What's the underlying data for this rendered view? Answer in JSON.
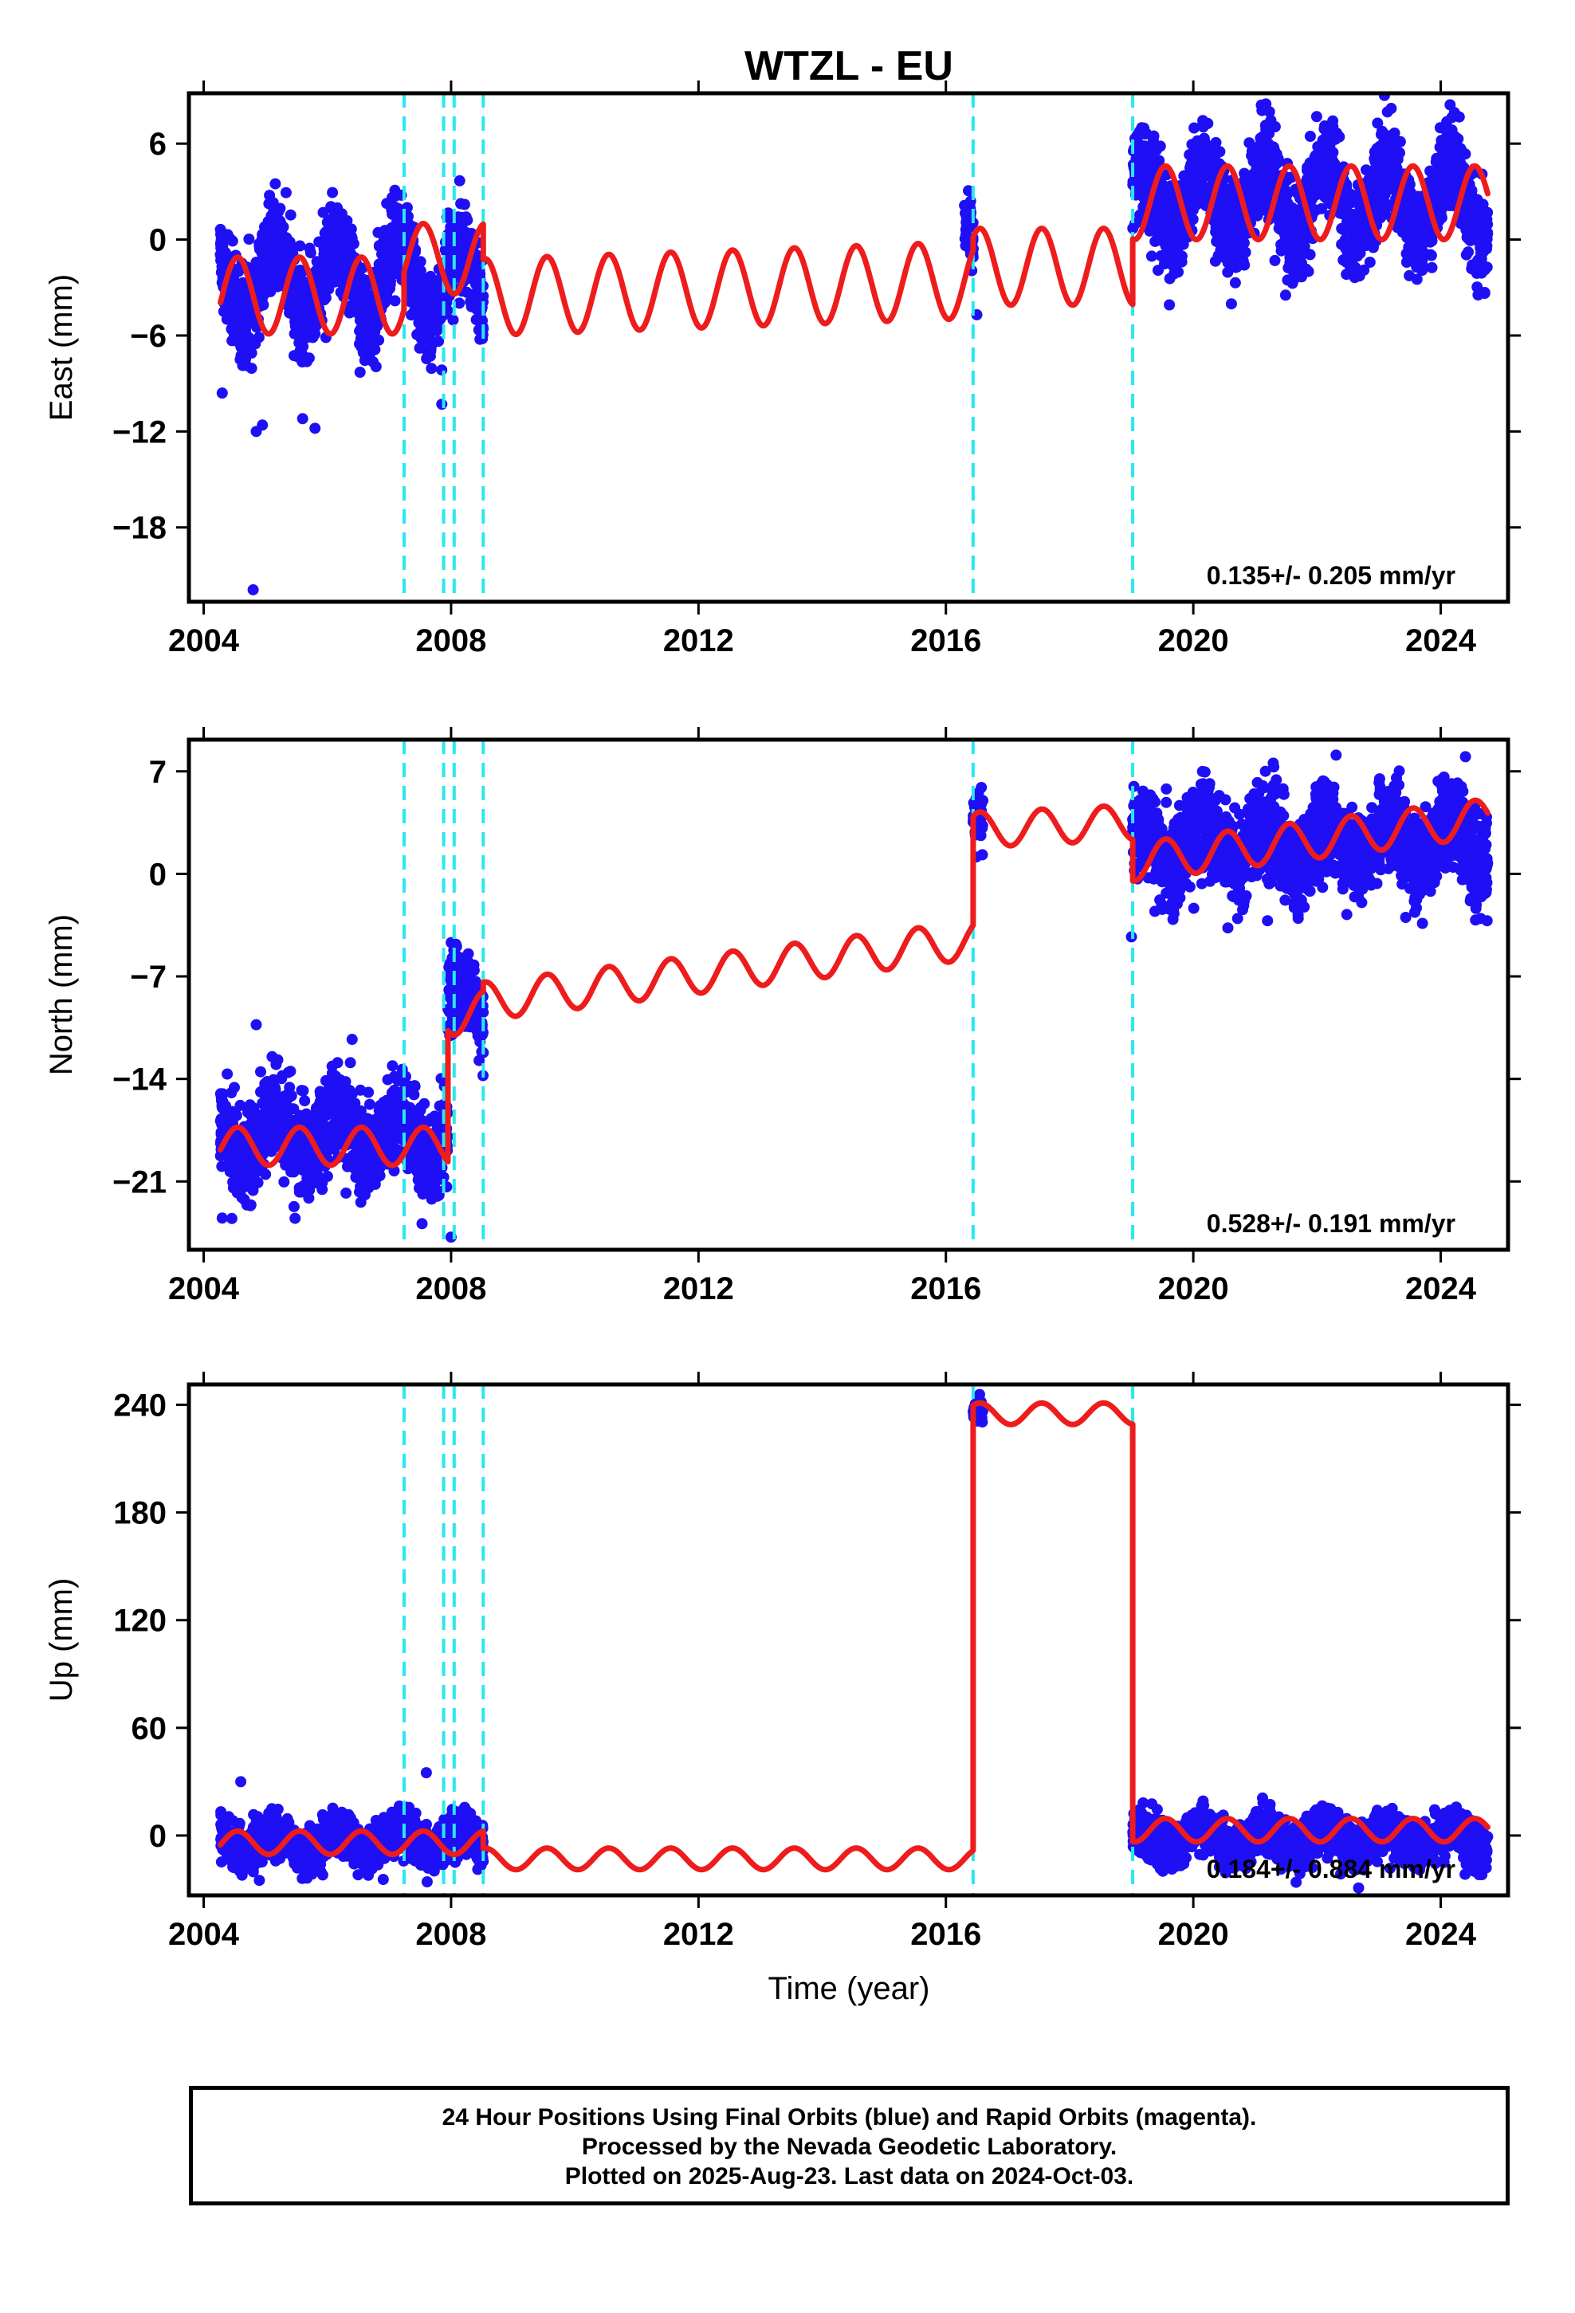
{
  "colors": {
    "observations": "#1f0ff5",
    "model": "#ee1c1c",
    "breaks": "#29e8f0",
    "frame": "#000000",
    "background": "#ffffff"
  },
  "chart_data": {
    "title": "WTZL - EU",
    "x_ticks": [
      "2004",
      "2008",
      "2012",
      "2016",
      "2020",
      "2024"
    ],
    "x_tick_values": [
      2004,
      2008,
      2012,
      2016,
      2020,
      2024
    ],
    "xlim": [
      2003.8,
      2025.05
    ],
    "xlabel": "Time (year)",
    "breaks": [
      2007.24,
      2007.88,
      2008.05,
      2008.52,
      2016.44,
      2019.02
    ],
    "data_span": [
      2004.27,
      2024.76
    ],
    "panels": [
      {
        "id": "east",
        "type": "scatter",
        "ylabel": "East (mm)",
        "ylim": [
          -22.5,
          9
        ],
        "y_ticks": [
          6,
          0,
          -6,
          -12,
          -18
        ],
        "rate_text": "0.135+/- 0.205 mm/yr",
        "observations": [
          {
            "from": 2004.27,
            "to": 2008.52,
            "center": -2.5,
            "amplitude": 2.4,
            "spread": 1.4
          },
          {
            "from": 2016.3,
            "to": 2016.45,
            "center": 0.5,
            "amplitude": 0.5,
            "spread": 1.0
          },
          {
            "from": 2019.02,
            "to": 2024.76,
            "center": 2.5,
            "amplitude": 2.3,
            "spread": 1.5
          }
        ],
        "outliers": [
          [
            2004.3,
            -9.6
          ],
          [
            2004.85,
            -12.0
          ],
          [
            2004.95,
            -11.6
          ],
          [
            2005.6,
            -11.2
          ],
          [
            2005.8,
            -11.8
          ],
          [
            2007.85,
            -10.3
          ],
          [
            2004.8,
            -21.9
          ],
          [
            2016.4,
            2.4
          ],
          [
            2016.5,
            -4.7
          ],
          [
            2023.2,
            8.2
          ]
        ],
        "model_segments": [
          {
            "from": 2004.27,
            "to": 2007.24,
            "offset": -3.5,
            "rate": 0.0,
            "amplitude": 2.4
          },
          {
            "from": 2007.24,
            "to": 2008.52,
            "offset": -1.2,
            "rate": 0.0,
            "amplitude": 2.2
          },
          {
            "from": 2008.52,
            "to": 2016.44,
            "offset": -3.6,
            "rate": 0.135,
            "amplitude": 2.4
          },
          {
            "from": 2016.44,
            "to": 2019.02,
            "offset": -1.7,
            "rate": 0.0,
            "amplitude": 2.4
          },
          {
            "from": 2019.02,
            "to": 2024.76,
            "offset": 2.3,
            "rate": 0.0,
            "amplitude": 2.3
          }
        ]
      },
      {
        "id": "north",
        "type": "scatter",
        "ylabel": "North (mm)",
        "ylim": [
          -25.5,
          9
        ],
        "y_ticks": [
          7,
          0,
          -7,
          -14,
          -21
        ],
        "rate_text": "0.528+/- 0.191 mm/yr",
        "observations": [
          {
            "from": 2004.27,
            "to": 2007.95,
            "center": -17.8,
            "amplitude": 1.4,
            "spread": 1.6
          },
          {
            "from": 2007.95,
            "to": 2008.52,
            "center": -9.0,
            "amplitude": 1.5,
            "spread": 1.4
          },
          {
            "from": 2016.44,
            "to": 2016.6,
            "center": 4.3,
            "amplitude": 0.4,
            "spread": 1.0
          },
          {
            "from": 2019.02,
            "to": 2024.76,
            "center": 2.0,
            "amplitude": 1.5,
            "spread": 1.5
          }
        ],
        "outliers": [
          [
            2004.3,
            -23.5
          ],
          [
            2004.85,
            -10.3
          ],
          [
            2006.4,
            -11.3
          ],
          [
            2008.0,
            -24.8
          ],
          [
            2019.0,
            -4.3
          ],
          [
            2021.2,
            -3.2
          ],
          [
            2024.75,
            -3.2
          ],
          [
            2024.4,
            8.0
          ]
        ],
        "model_segments": [
          {
            "from": 2004.27,
            "to": 2007.95,
            "offset": -18.6,
            "rate": 0.0,
            "amplitude": 1.3
          },
          {
            "from": 2007.95,
            "to": 2008.52,
            "offset": -9.5,
            "rate": 0.0,
            "amplitude": 1.5
          },
          {
            "from": 2008.52,
            "to": 2016.44,
            "offset": -8.7,
            "rate": 0.528,
            "amplitude": 1.3
          },
          {
            "from": 2016.44,
            "to": 2019.02,
            "offset": 3.0,
            "rate": 0.2,
            "amplitude": 1.2
          },
          {
            "from": 2019.02,
            "to": 2024.76,
            "offset": 0.8,
            "rate": 0.528,
            "amplitude": 1.3
          }
        ]
      },
      {
        "id": "up",
        "type": "scatter",
        "ylabel": "Up (mm)",
        "ylim": [
          -32,
          250
        ],
        "y_ticks": [
          240,
          180,
          120,
          60,
          0
        ],
        "rate_text": "0.184+/- 0.884 mm/yr",
        "observations": [
          {
            "from": 2004.27,
            "to": 2008.52,
            "center": -3.0,
            "amplitude": 6.0,
            "spread": 6.0
          },
          {
            "from": 2016.44,
            "to": 2016.6,
            "center": 237.0,
            "amplitude": 1.0,
            "spread": 3.0
          },
          {
            "from": 2019.02,
            "to": 2024.76,
            "center": -2.0,
            "amplitude": 6.0,
            "spread": 6.0
          }
        ],
        "outliers": [
          [
            2004.6,
            30
          ],
          [
            2007.6,
            35
          ],
          [
            2004.9,
            -25
          ]
        ],
        "model_segments": [
          {
            "from": 2004.27,
            "to": 2008.52,
            "offset": -4.0,
            "rate": 0.0,
            "amplitude": 6.5
          },
          {
            "from": 2008.52,
            "to": 2016.44,
            "offset": -13.0,
            "rate": 0.0,
            "amplitude": 6.0
          },
          {
            "from": 2016.44,
            "to": 2019.02,
            "offset": 235.0,
            "rate": 0.0,
            "amplitude": 6.0
          },
          {
            "from": 2019.02,
            "to": 2024.76,
            "offset": 3.0,
            "rate": 0.0,
            "amplitude": 6.5
          }
        ]
      }
    ]
  },
  "footer": {
    "line1": "24 Hour Positions Using Final Orbits (blue) and Rapid Orbits (magenta).",
    "line2": "Processed by the Nevada Geodetic Laboratory.",
    "line3": "Plotted on 2025-Aug-23. Last data on 2024-Oct-03."
  }
}
